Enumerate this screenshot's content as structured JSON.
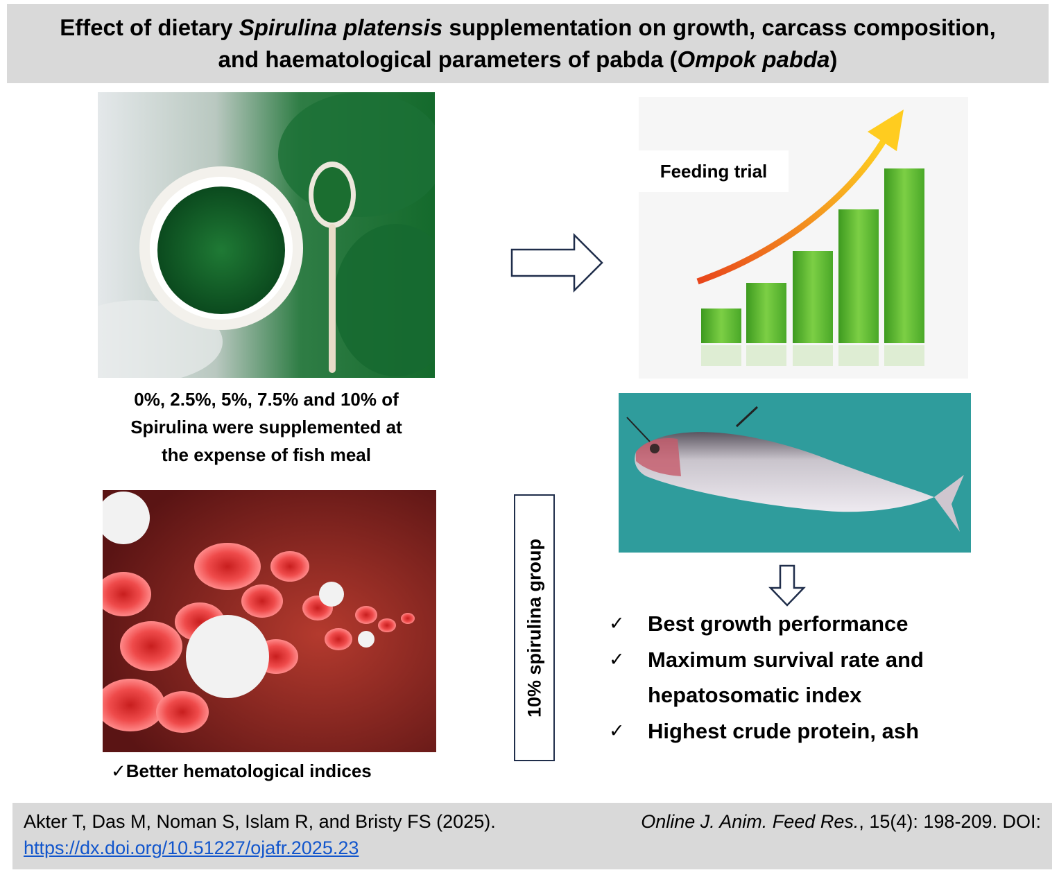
{
  "title": {
    "line1_prefix": "Effect of dietary ",
    "line1_italic": "Spirulina platensis",
    "line1_suffix": " supplementation on growth, carcass composition,",
    "line2_prefix": "and haematological parameters of pabda (",
    "line2_italic": "Ompok pabda",
    "line2_suffix": ")"
  },
  "dose_caption": {
    "line1": "0%, 2.5%, 5%, 7.5% and 10% of",
    "line2": "Spirulina were supplemented at",
    "line3": "the expense of fish meal"
  },
  "feeding_trial_label": "Feeding trial",
  "group_label": "10% spirulina group",
  "findings": {
    "check": "✓",
    "item1": "Best growth performance",
    "item2_line1": "Maximum survival rate and",
    "item2_line2": "hepatosomatic index",
    "item3": "Highest crude protein, ash"
  },
  "hematology_caption": "✓Better hematological indices",
  "citation": {
    "authors": "Akter T, Das M, Noman S, Islam R, and Bristy FS (2025).",
    "journal": "Online J. Anim. Feed Res.",
    "details": ", 15(4): 198-209. DOI:",
    "doi_url": "https://dx.doi.org/10.51227/ojafr.2025.23"
  },
  "colors": {
    "panel_gray": "#d9d9d9",
    "arrow_stroke": "#1f2d4a",
    "link_blue": "#1155cc",
    "bar_green": "#5cb82e",
    "growth_arrow_orange": "#f07a10",
    "fish_background": "#2f9c9c",
    "blood_red": "#d42a2a"
  },
  "icons": [
    "right-arrow-icon",
    "down-arrow-icon",
    "checkmark-icon"
  ]
}
